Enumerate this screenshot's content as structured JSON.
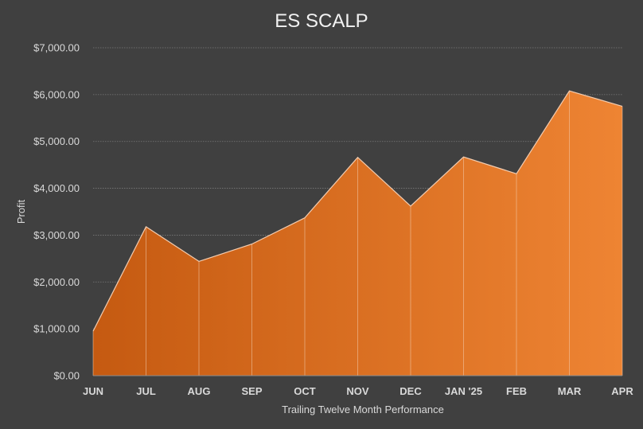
{
  "chart_data": {
    "type": "area",
    "title": "ES SCALP",
    "xlabel": "Trailing Twelve Month Performance",
    "ylabel": "Profit",
    "categories": [
      "JUN",
      "JUL",
      "AUG",
      "SEP",
      "OCT",
      "NOV",
      "DEC",
      "JAN '25",
      "FEB",
      "MAR",
      "APR"
    ],
    "series": [
      {
        "values": [
          950,
          3180,
          2440,
          2810,
          3370,
          4660,
          3620,
          4670,
          4310,
          6080,
          5750
        ]
      }
    ],
    "ylim": [
      0,
      7000
    ],
    "yticks": [
      0,
      1000,
      2000,
      3000,
      4000,
      5000,
      6000,
      7000
    ],
    "ytick_labels": [
      "$0.00",
      "$1,000.00",
      "$2,000.00",
      "$3,000.00",
      "$4,000.00",
      "$5,000.00",
      "$6,000.00",
      "$7,000.00"
    ],
    "grid": true,
    "legend": "none",
    "colors": {
      "background": "#404040",
      "fill_start": "#c55a11",
      "fill_end": "#ee8433",
      "line": "#f4cdb0"
    }
  }
}
